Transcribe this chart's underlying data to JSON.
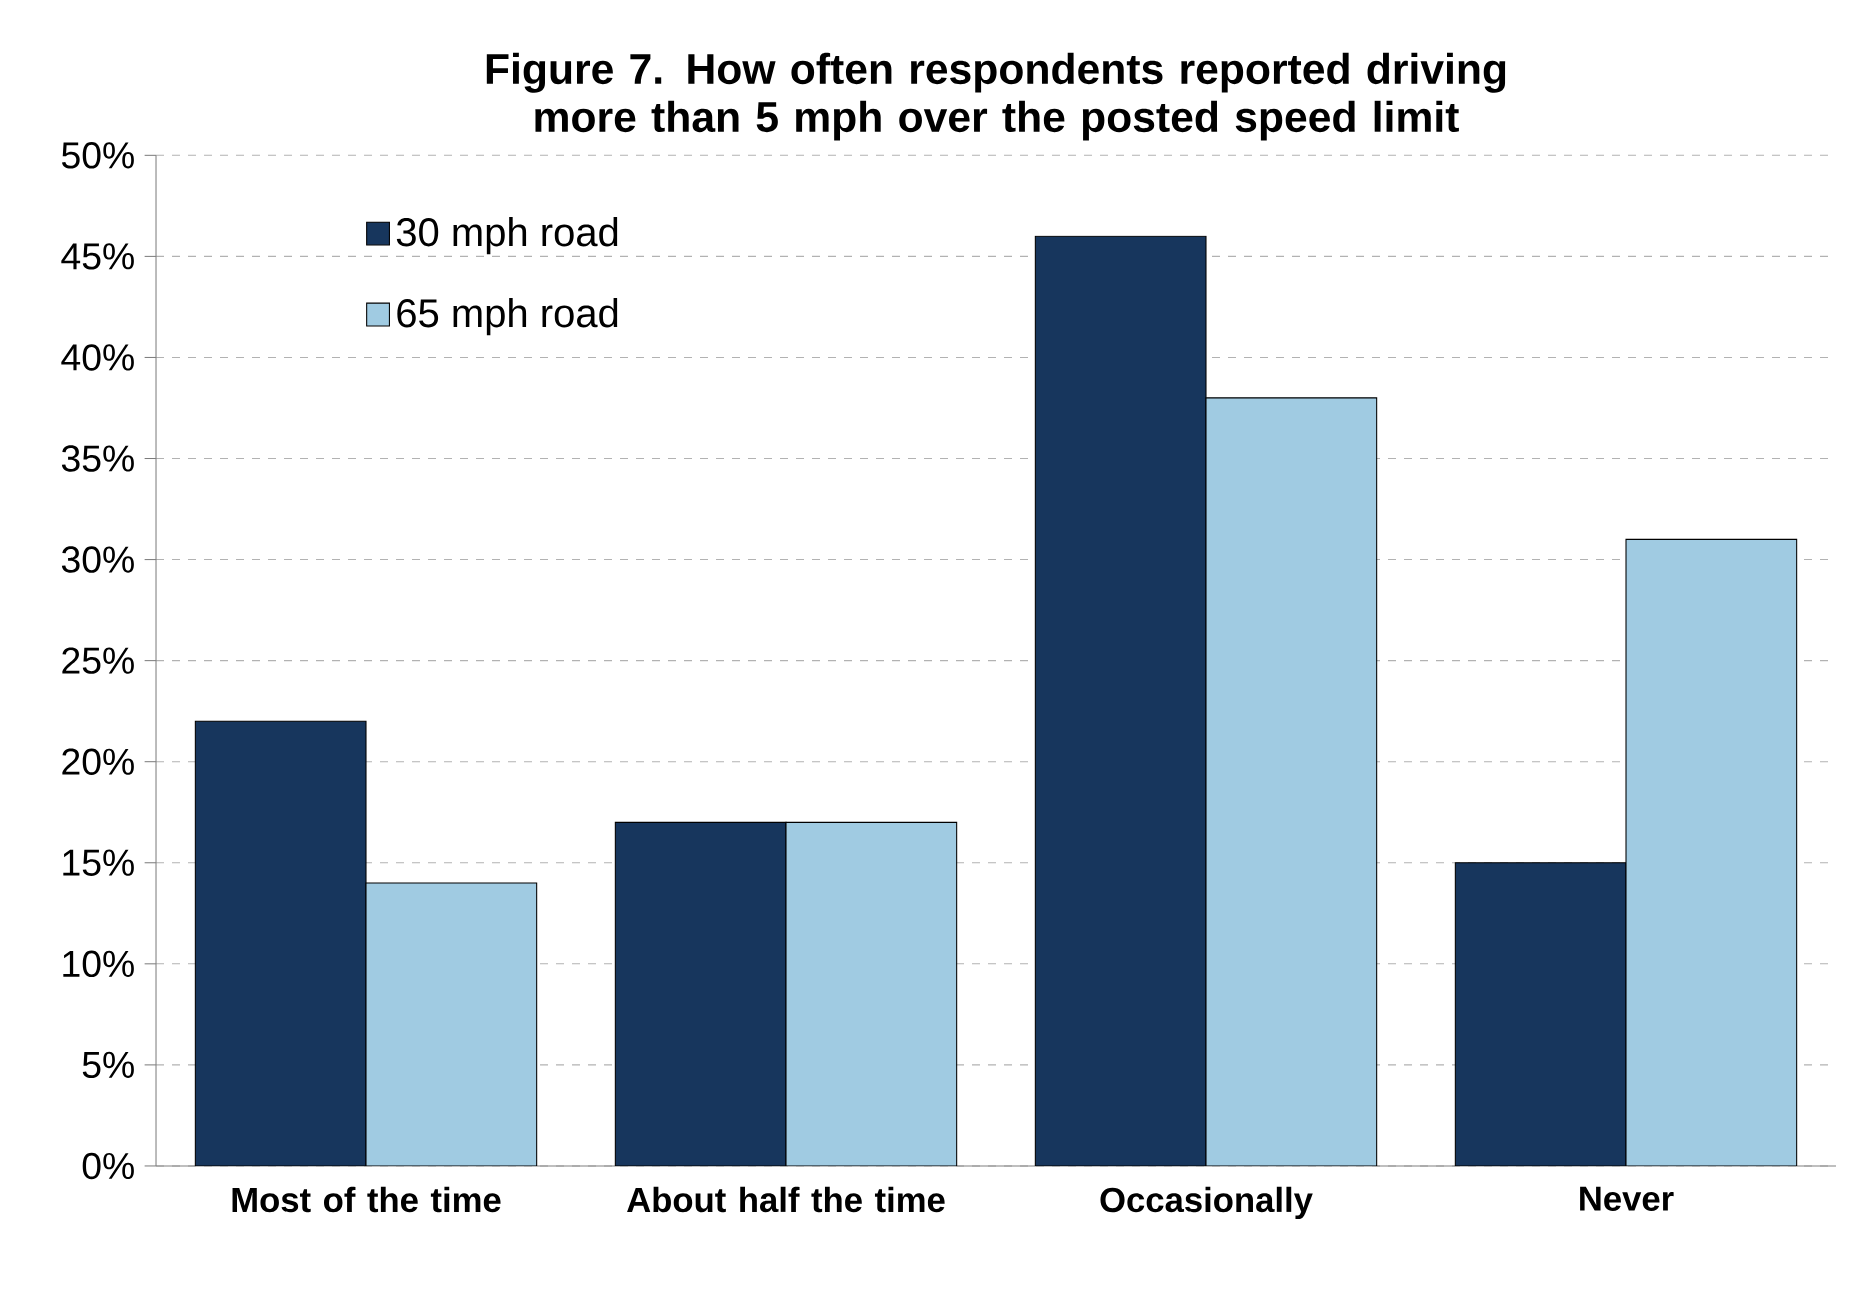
{
  "chart_data": {
    "type": "bar",
    "title": "Figure 7. How often respondents reported driving more than 5 mph over the posted speed limit",
    "categories": [
      "Most of the time",
      "About half the time",
      "Occasionally",
      "Never"
    ],
    "series": [
      {
        "name": "30 mph road",
        "color": "#17365d",
        "values": [
          22,
          17,
          46,
          15
        ]
      },
      {
        "name": "65 mph road",
        "color": "#a0cbe2",
        "values": [
          14,
          17,
          38,
          31
        ]
      }
    ],
    "ylim": [
      0,
      50
    ],
    "yticks": [
      {
        "value": 0,
        "label": "0%"
      },
      {
        "value": 5,
        "label": "5%"
      },
      {
        "value": 10,
        "label": "10%"
      },
      {
        "value": 15,
        "label": "15%"
      },
      {
        "value": 20,
        "label": "20%"
      },
      {
        "value": 25,
        "label": "25%"
      },
      {
        "value": 30,
        "label": "30%"
      },
      {
        "value": 35,
        "label": "35%"
      },
      {
        "value": 40,
        "label": "40%"
      },
      {
        "value": 45,
        "label": "45%"
      },
      {
        "value": 50,
        "label": "50%"
      }
    ],
    "grid": "y",
    "legend": "top left"
  }
}
